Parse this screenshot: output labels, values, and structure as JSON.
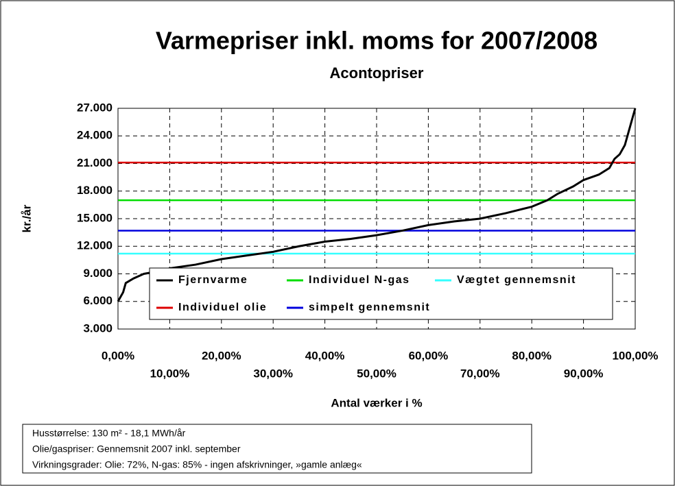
{
  "chart_data": {
    "type": "line",
    "title": "Varmepriser inkl. moms for 2007/2008",
    "subtitle": "Acontopriser",
    "y_label": "kr./år",
    "x_label": "Antal værker i %",
    "ylim": [
      3000,
      27000
    ],
    "yticks": [
      {
        "value": 3000,
        "label": "3.000"
      },
      {
        "value": 6000,
        "label": "6.000"
      },
      {
        "value": 9000,
        "label": "9.000"
      },
      {
        "value": 12000,
        "label": "12.000"
      },
      {
        "value": 15000,
        "label": "15.000"
      },
      {
        "value": 18000,
        "label": "18.000"
      },
      {
        "value": 21000,
        "label": "21.000"
      },
      {
        "value": 24000,
        "label": "24.000"
      },
      {
        "value": 27000,
        "label": "27.000"
      }
    ],
    "xlim": [
      0,
      100
    ],
    "xticks": [
      {
        "value": 0,
        "label": "0,00%"
      },
      {
        "value": 10,
        "label": "10,00%"
      },
      {
        "value": 20,
        "label": "20,00%"
      },
      {
        "value": 30,
        "label": "30,00%"
      },
      {
        "value": 40,
        "label": "40,00%"
      },
      {
        "value": 50,
        "label": "50,00%"
      },
      {
        "value": 60,
        "label": "60,00%"
      },
      {
        "value": 70,
        "label": "70,00%"
      },
      {
        "value": 80,
        "label": "80,00%"
      },
      {
        "value": 90,
        "label": "90,00%"
      },
      {
        "value": 100,
        "label": "100,00%"
      }
    ],
    "grid": true,
    "series": [
      {
        "name": "Fjernvarme",
        "color": "#000000",
        "x": [
          0,
          0.5,
          1,
          1.5,
          3,
          5,
          8,
          10,
          15,
          20,
          25,
          30,
          35,
          40,
          45,
          50,
          55,
          60,
          65,
          70,
          75,
          80,
          83,
          85,
          88,
          90,
          93,
          95,
          96,
          97,
          98,
          99,
          100
        ],
        "values": [
          6000,
          6500,
          7000,
          8000,
          8500,
          9000,
          9300,
          9600,
          10000,
          10600,
          11000,
          11400,
          12000,
          12500,
          12800,
          13200,
          13700,
          14300,
          14700,
          15000,
          15600,
          16300,
          17000,
          17700,
          18500,
          19200,
          19800,
          20500,
          21500,
          22000,
          23000,
          25000,
          27000
        ]
      },
      {
        "name": "Individuel N-gas",
        "color": "#00dd00",
        "x": [
          0,
          100
        ],
        "values": [
          17000,
          17000
        ]
      },
      {
        "name": "Vægtet gennemsnit",
        "color": "#33ffff",
        "x": [
          0,
          100
        ],
        "values": [
          11200,
          11200
        ]
      },
      {
        "name": "Individuel olie",
        "color": "#dd0000",
        "x": [
          0,
          100
        ],
        "values": [
          21100,
          21100
        ]
      },
      {
        "name": "simpelt gennemsnit",
        "color": "#0000dd",
        "x": [
          0,
          100
        ],
        "values": [
          13700,
          13700
        ]
      }
    ],
    "notes": [
      "Husstørrelse: 130 m² - 18,1 MWh/år",
      "Olie/gaspriser: Gennemsnit 2007 inkl. september",
      "Virkningsgrader: Olie: 72%, N-gas: 85% - ingen afskrivninger, »gamle anlæg«"
    ]
  }
}
